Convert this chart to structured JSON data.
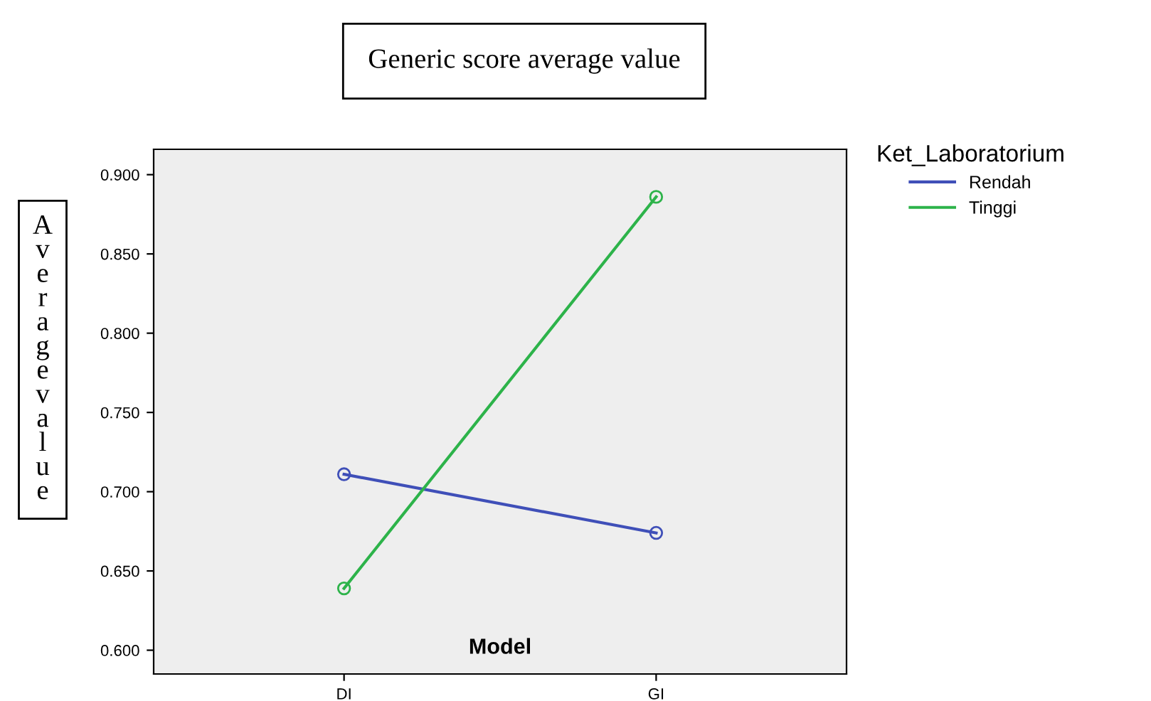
{
  "chart_data": {
    "type": "line",
    "title": "Generic score average value",
    "xlabel": "Model",
    "ylabel": "Average value",
    "legend_title": "Ket_Laboratorium",
    "categories": [
      "DI",
      "GI"
    ],
    "series": [
      {
        "name": "Rendah",
        "color": "#3f4fb8",
        "values": [
          0.711,
          0.674
        ]
      },
      {
        "name": "Tinggi",
        "color": "#2db34a",
        "values": [
          0.639,
          0.886
        ]
      }
    ],
    "ylim": [
      0.585,
      0.916
    ],
    "yticks": [
      {
        "value": 0.6,
        "label": "0.600"
      },
      {
        "value": 0.65,
        "label": "0.650"
      },
      {
        "value": 0.7,
        "label": "0.700"
      },
      {
        "value": 0.75,
        "label": "0.750"
      },
      {
        "value": 0.8,
        "label": "0.800"
      },
      {
        "value": 0.85,
        "label": "0.850"
      },
      {
        "value": 0.9,
        "label": "0.900"
      }
    ],
    "marker": "circle",
    "line_style": "solid",
    "grid": false,
    "legend": "top right"
  }
}
